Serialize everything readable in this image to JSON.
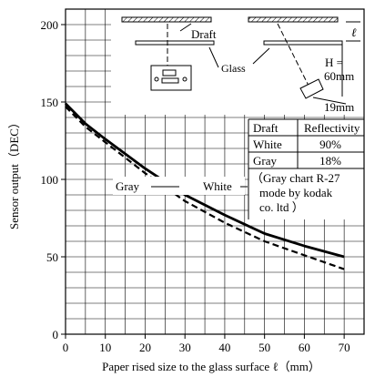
{
  "chart_data": {
    "type": "line",
    "title": "",
    "xlabel": "Paper rised size to the glass surface ℓ（mm）",
    "ylabel": "Sensor output（DEC）",
    "xlim": [
      0,
      75
    ],
    "ylim": [
      0,
      210
    ],
    "grid": true,
    "x_ticks": [
      0,
      10,
      20,
      30,
      40,
      50,
      60,
      70
    ],
    "y_ticks": [
      0,
      50,
      100,
      150,
      200
    ],
    "series": [
      {
        "name": "White",
        "style": "solid",
        "color": "#000000",
        "x": [
          0,
          5,
          10,
          20,
          30,
          40,
          50,
          60,
          70
        ],
        "y": [
          149,
          136,
          126,
          107,
          90,
          77,
          65,
          57,
          50
        ]
      },
      {
        "name": "Gray",
        "style": "dashed",
        "color": "#000000",
        "x": [
          0,
          5,
          10,
          20,
          30,
          40,
          50,
          60,
          70
        ],
        "y": [
          147,
          134,
          124,
          104,
          86,
          72,
          60,
          51,
          42
        ]
      }
    ],
    "legend_table": {
      "header": [
        "Draft",
        "Reflectivity"
      ],
      "rows": [
        [
          "White",
          "90%"
        ],
        [
          "Gray",
          "18%"
        ]
      ],
      "note_lines": [
        "（Gray chart R-27",
        "mode by kodak",
        "co. ltd ）"
      ]
    },
    "diagram": {
      "draft_label": "Draft",
      "glass_label": "Glass",
      "l_symbol": "ℓ",
      "h_label_1": "H =",
      "h_label_2": "60mm",
      "dim_label": "19mm"
    }
  }
}
